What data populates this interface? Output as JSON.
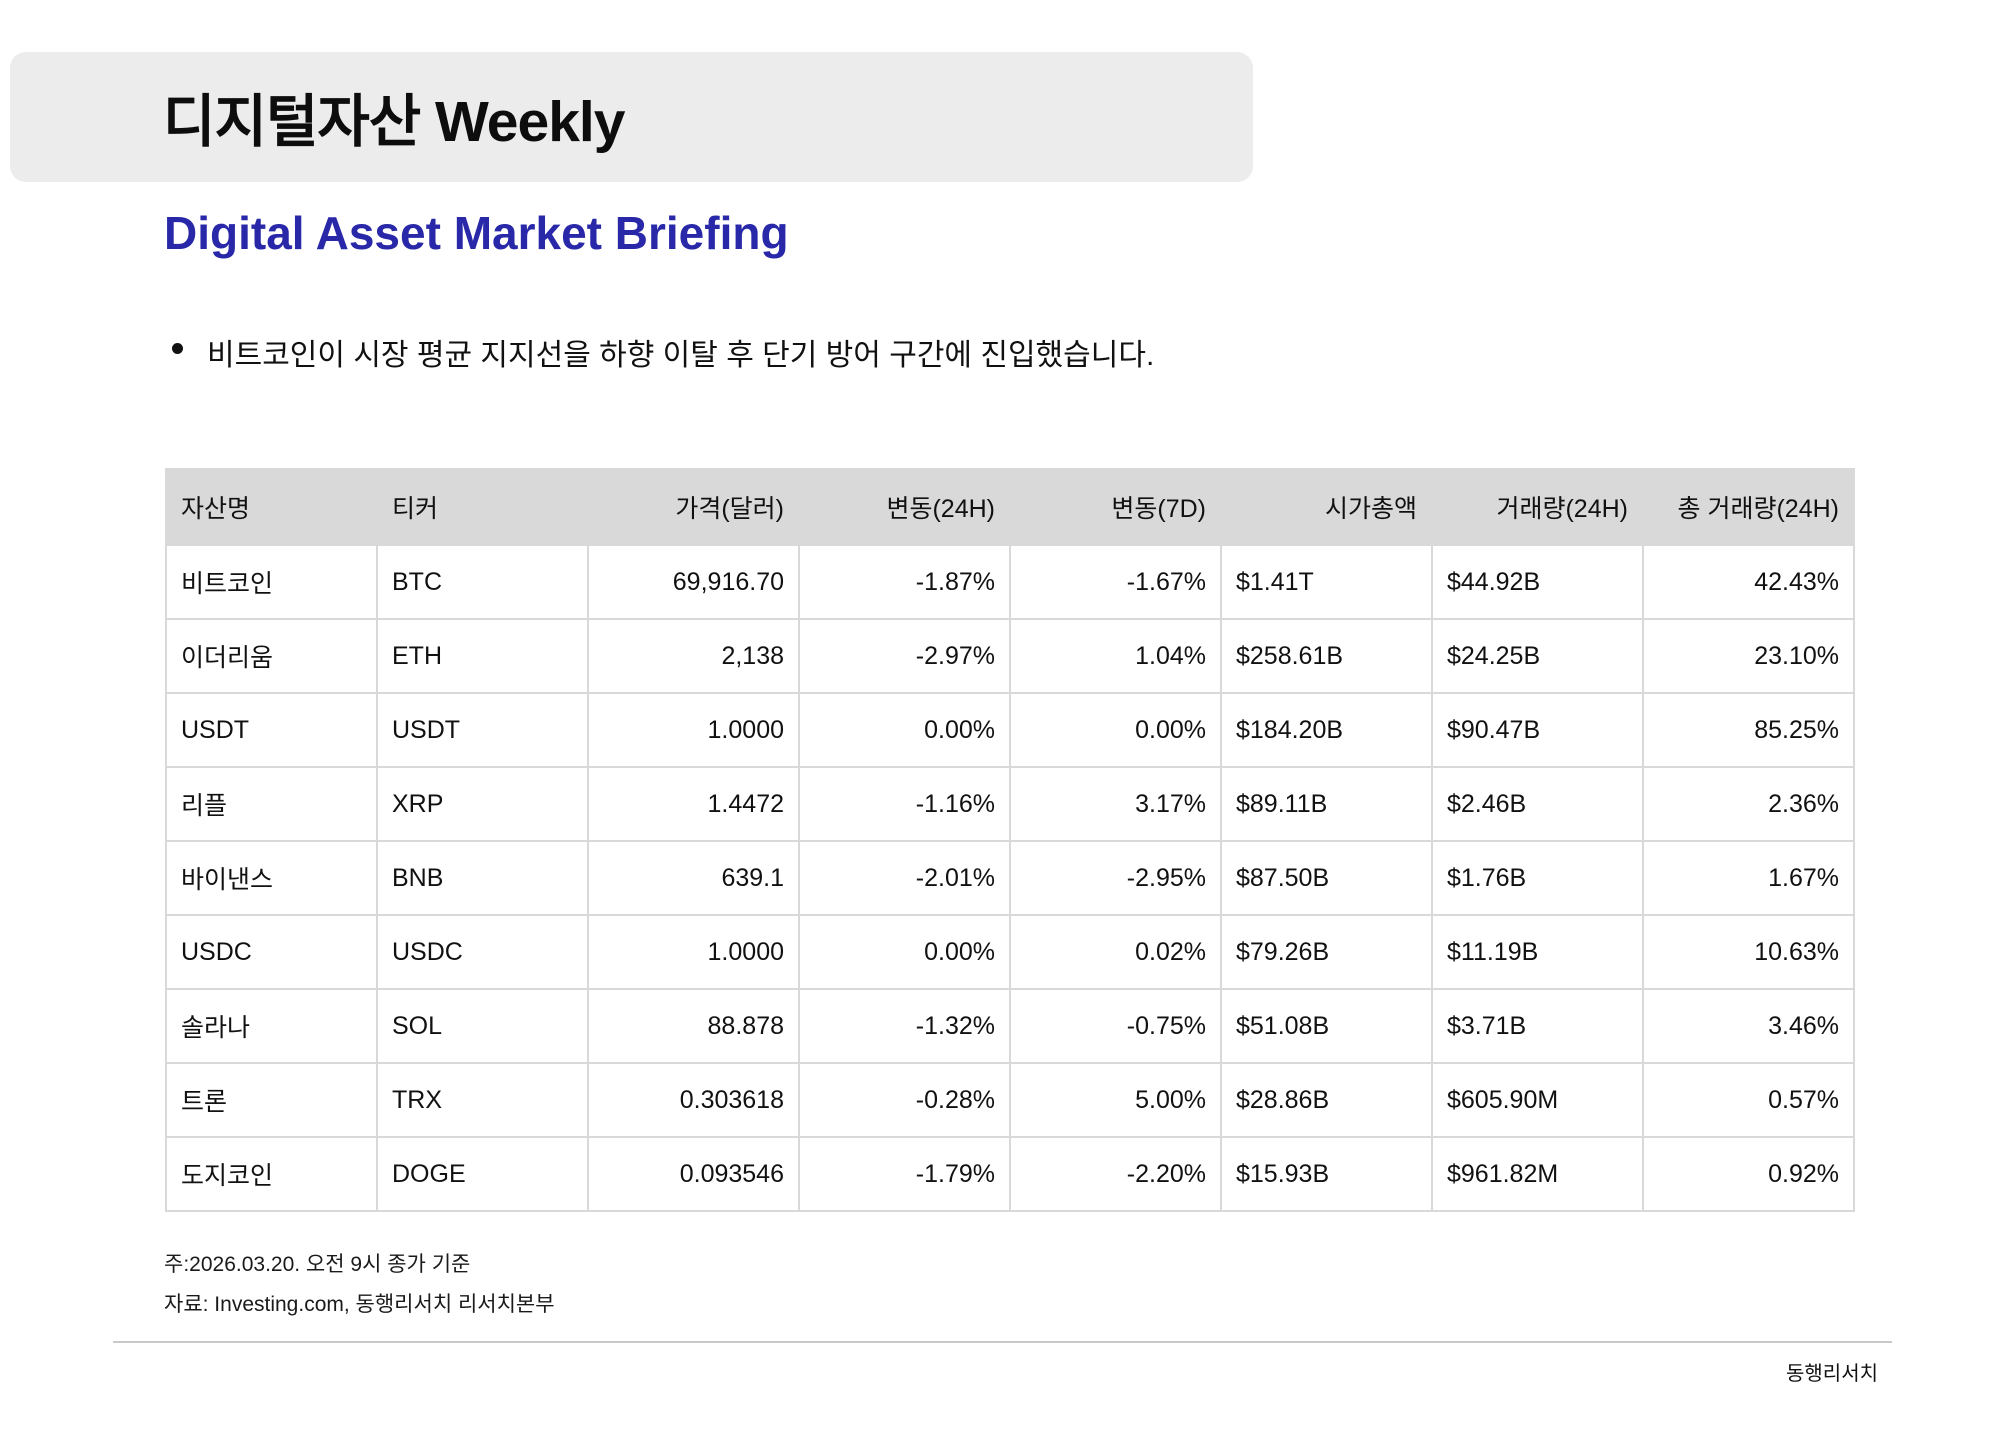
{
  "page": {
    "title": "디지털자산 Weekly",
    "subtitle": "Digital Asset Market Briefing",
    "bullet": "비트코인이 시장 평균 지지선을 하향 이탈 후 단기 방어 구간에 진입했습니다.",
    "note_date": "주:2026.03.20. 오전 9시 종가 기준",
    "note_source": "자료: Investing.com, 동행리서치 리서치본부",
    "footer_brand": "동행리서치"
  },
  "colors": {
    "accent_blue": "#2828a8",
    "title_box_bg": "#ececec",
    "table_header_bg": "#d9d9d9",
    "table_border": "#d9d9d9"
  },
  "table": {
    "columns": [
      {
        "label": "자산명",
        "header_align": "left",
        "cell_align": "left"
      },
      {
        "label": "티커",
        "header_align": "left",
        "cell_align": "left"
      },
      {
        "label": "가격(달러)",
        "header_align": "right",
        "cell_align": "right"
      },
      {
        "label": "변동(24H)",
        "header_align": "right",
        "cell_align": "right"
      },
      {
        "label": "변동(7D)",
        "header_align": "right",
        "cell_align": "right"
      },
      {
        "label": "시가총액",
        "header_align": "right",
        "cell_align": "left"
      },
      {
        "label": "거래량(24H)",
        "header_align": "right",
        "cell_align": "left"
      },
      {
        "label": "총 거래량(24H)",
        "header_align": "right",
        "cell_align": "right"
      }
    ],
    "rows": [
      [
        "비트코인",
        "BTC",
        "69,916.70",
        "-1.87%",
        "-1.67%",
        "$1.41T",
        "$44.92B",
        "42.43%"
      ],
      [
        "이더리움",
        "ETH",
        "2,138",
        "-2.97%",
        "1.04%",
        "$258.61B",
        "$24.25B",
        "23.10%"
      ],
      [
        "USDT",
        "USDT",
        "1.0000",
        "0.00%",
        "0.00%",
        "$184.20B",
        "$90.47B",
        "85.25%"
      ],
      [
        "리플",
        "XRP",
        "1.4472",
        "-1.16%",
        "3.17%",
        "$89.11B",
        "$2.46B",
        "2.36%"
      ],
      [
        "바이낸스",
        "BNB",
        "639.1",
        "-2.01%",
        "-2.95%",
        "$87.50B",
        "$1.76B",
        "1.67%"
      ],
      [
        "USDC",
        "USDC",
        "1.0000",
        "0.00%",
        "0.02%",
        "$79.26B",
        "$11.19B",
        "10.63%"
      ],
      [
        "솔라나",
        "SOL",
        "88.878",
        "-1.32%",
        "-0.75%",
        "$51.08B",
        "$3.71B",
        "3.46%"
      ],
      [
        "트론",
        "TRX",
        "0.303618",
        "-0.28%",
        "5.00%",
        "$28.86B",
        "$605.90M",
        "0.57%"
      ],
      [
        "도지코인",
        "DOGE",
        "0.093546",
        "-1.79%",
        "-2.20%",
        "$15.93B",
        "$961.82M",
        "0.92%"
      ]
    ]
  }
}
